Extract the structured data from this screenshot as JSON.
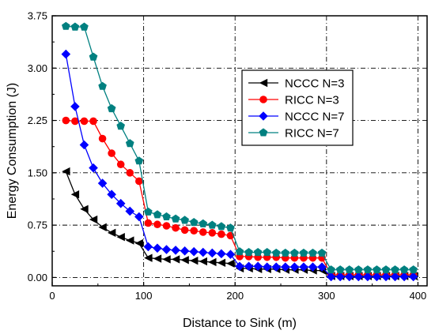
{
  "chart_data": {
    "type": "scatter",
    "xlabel": "Distance to Sink (m)",
    "ylabel": "Energy Consumption (J)",
    "xlim": [
      0,
      410
    ],
    "ylim": [
      -0.12,
      3.75
    ],
    "x_ticks": [
      "0",
      "100",
      "200",
      "300",
      "400"
    ],
    "y_ticks": [
      "0.00",
      "0.75",
      "1.50",
      "2.25",
      "3.00",
      "3.75"
    ],
    "grid": "dash-dot",
    "legend_position": "top-right",
    "series": [
      {
        "name": "NCCC N=3",
        "color": "#000000",
        "marker": "triangle-left",
        "x": [
          15,
          25,
          35,
          45,
          55,
          65,
          75,
          85,
          95,
          105,
          115,
          125,
          135,
          145,
          155,
          165,
          175,
          185,
          195,
          205,
          215,
          225,
          235,
          245,
          255,
          265,
          275,
          285,
          295,
          305,
          315,
          325,
          335,
          345,
          355,
          365,
          375,
          385,
          395
        ],
        "y": [
          1.52,
          1.19,
          0.98,
          0.83,
          0.72,
          0.64,
          0.58,
          0.53,
          0.49,
          0.28,
          0.27,
          0.26,
          0.26,
          0.25,
          0.24,
          0.23,
          0.22,
          0.21,
          0.2,
          0.13,
          0.13,
          0.12,
          0.12,
          0.12,
          0.11,
          0.11,
          0.11,
          0.1,
          0.1,
          0.02,
          0.02,
          0.02,
          0.02,
          0.02,
          0.02,
          0.02,
          0.02,
          0.02,
          0.02
        ]
      },
      {
        "name": "RICC N=3",
        "color": "#ff0000",
        "marker": "circle",
        "x": [
          15,
          25,
          35,
          45,
          55,
          65,
          75,
          85,
          95,
          105,
          115,
          125,
          135,
          145,
          155,
          165,
          175,
          185,
          195,
          205,
          215,
          225,
          235,
          245,
          255,
          265,
          275,
          285,
          295,
          305,
          315,
          325,
          335,
          345,
          355,
          365,
          375,
          385,
          395
        ],
        "y": [
          2.25,
          2.24,
          2.24,
          2.24,
          1.99,
          1.78,
          1.62,
          1.5,
          1.38,
          0.78,
          0.76,
          0.74,
          0.71,
          0.68,
          0.67,
          0.65,
          0.64,
          0.62,
          0.6,
          0.3,
          0.3,
          0.29,
          0.29,
          0.29,
          0.28,
          0.28,
          0.28,
          0.28,
          0.28,
          0.04,
          0.04,
          0.04,
          0.04,
          0.04,
          0.04,
          0.04,
          0.04,
          0.04,
          0.04
        ]
      },
      {
        "name": "NCCC N=7",
        "color": "#0000ff",
        "marker": "diamond",
        "x": [
          15,
          25,
          35,
          45,
          55,
          65,
          75,
          85,
          95,
          105,
          115,
          125,
          135,
          145,
          155,
          165,
          175,
          185,
          195,
          205,
          215,
          225,
          235,
          245,
          255,
          265,
          275,
          285,
          295,
          305,
          315,
          325,
          335,
          345,
          355,
          365,
          375,
          385,
          395
        ],
        "y": [
          3.2,
          2.45,
          1.9,
          1.57,
          1.35,
          1.19,
          1.06,
          0.95,
          0.87,
          0.44,
          0.42,
          0.4,
          0.39,
          0.38,
          0.37,
          0.36,
          0.35,
          0.34,
          0.33,
          0.16,
          0.16,
          0.16,
          0.15,
          0.15,
          0.15,
          0.15,
          0.15,
          0.15,
          0.15,
          0.01,
          0.01,
          0.01,
          0.01,
          0.01,
          0.01,
          0.01,
          0.01,
          0.01,
          0.01
        ]
      },
      {
        "name": "RICC N=7",
        "color": "#008080",
        "marker": "pentagon",
        "x": [
          15,
          25,
          35,
          45,
          55,
          65,
          75,
          85,
          95,
          105,
          115,
          125,
          135,
          145,
          155,
          165,
          175,
          185,
          195,
          205,
          215,
          225,
          235,
          245,
          255,
          265,
          275,
          285,
          295,
          305,
          315,
          325,
          335,
          345,
          355,
          365,
          375,
          385,
          395
        ],
        "y": [
          3.6,
          3.59,
          3.59,
          3.16,
          2.74,
          2.42,
          2.17,
          1.92,
          1.67,
          0.94,
          0.9,
          0.87,
          0.84,
          0.82,
          0.79,
          0.77,
          0.75,
          0.73,
          0.71,
          0.37,
          0.36,
          0.36,
          0.36,
          0.35,
          0.35,
          0.35,
          0.35,
          0.35,
          0.35,
          0.11,
          0.11,
          0.11,
          0.11,
          0.11,
          0.11,
          0.11,
          0.11,
          0.11,
          0.11
        ]
      }
    ]
  }
}
